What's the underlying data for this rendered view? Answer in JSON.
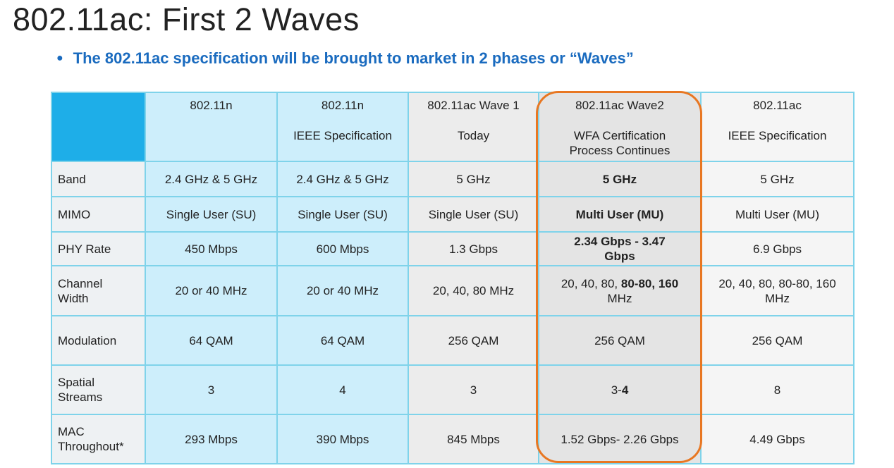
{
  "header": {
    "title": "802.11ac: First 2 Waves",
    "bullet": "The 802.11ac specification will be brought to market in 2 phases or “Waves”"
  },
  "table": {
    "columns": [
      [
        "802.11n"
      ],
      [
        "802.11n",
        "IEEE Specification"
      ],
      [
        "802.11ac Wave 1",
        "Today"
      ],
      [
        "802.11ac Wave2",
        "WFA Certification Process Continues"
      ],
      [
        "802.11ac",
        "IEEE Specification"
      ]
    ],
    "rows": [
      {
        "label": "Band",
        "cells": [
          "2.4 GHz & 5 GHz",
          "2.4 GHz & 5 GHz",
          "5 GHz",
          [
            {
              "text": "5 GHz",
              "bold": true
            }
          ],
          "5 GHz"
        ]
      },
      {
        "label": "MIMO",
        "cells": [
          "Single User (SU)",
          "Single User (SU)",
          "Single User (SU)",
          [
            {
              "text": "Multi User (MU)",
              "bold": true
            }
          ],
          "Multi User (MU)"
        ]
      },
      {
        "label": "PHY Rate",
        "cells": [
          "450 Mbps",
          "600 Mbps",
          "1.3 Gbps",
          [
            {
              "text": "2.34 Gbps - 3.47 Gbps",
              "bold": true
            }
          ],
          "6.9 Gbps"
        ]
      },
      {
        "label": "Channel Width",
        "cells": [
          "20 or 40 MHz",
          "20 or 40 MHz",
          "20, 40, 80 MHz",
          [
            {
              "text": "20, 40, 80, ",
              "bold": false
            },
            {
              "text": "80-80, 160",
              "bold": true
            },
            {
              "text": " MHz",
              "bold": false
            }
          ],
          "20, 40, 80, 80-80, 160 MHz"
        ]
      },
      {
        "label": "Modulation",
        "cells": [
          "64 QAM",
          "64 QAM",
          "256 QAM",
          "256 QAM",
          "256 QAM"
        ]
      },
      {
        "label": "Spatial Streams",
        "cells": [
          "3",
          "4",
          "3",
          [
            {
              "text": "3-",
              "bold": false
            },
            {
              "text": "4",
              "bold": true
            }
          ],
          "8"
        ]
      },
      {
        "label": "MAC Throughout*",
        "cells": [
          "293 Mbps",
          "390 Mbps",
          "845 Mbps",
          "1.52 Gbps- 2.26 Gbps",
          "4.49 Gbps"
        ]
      }
    ]
  }
}
